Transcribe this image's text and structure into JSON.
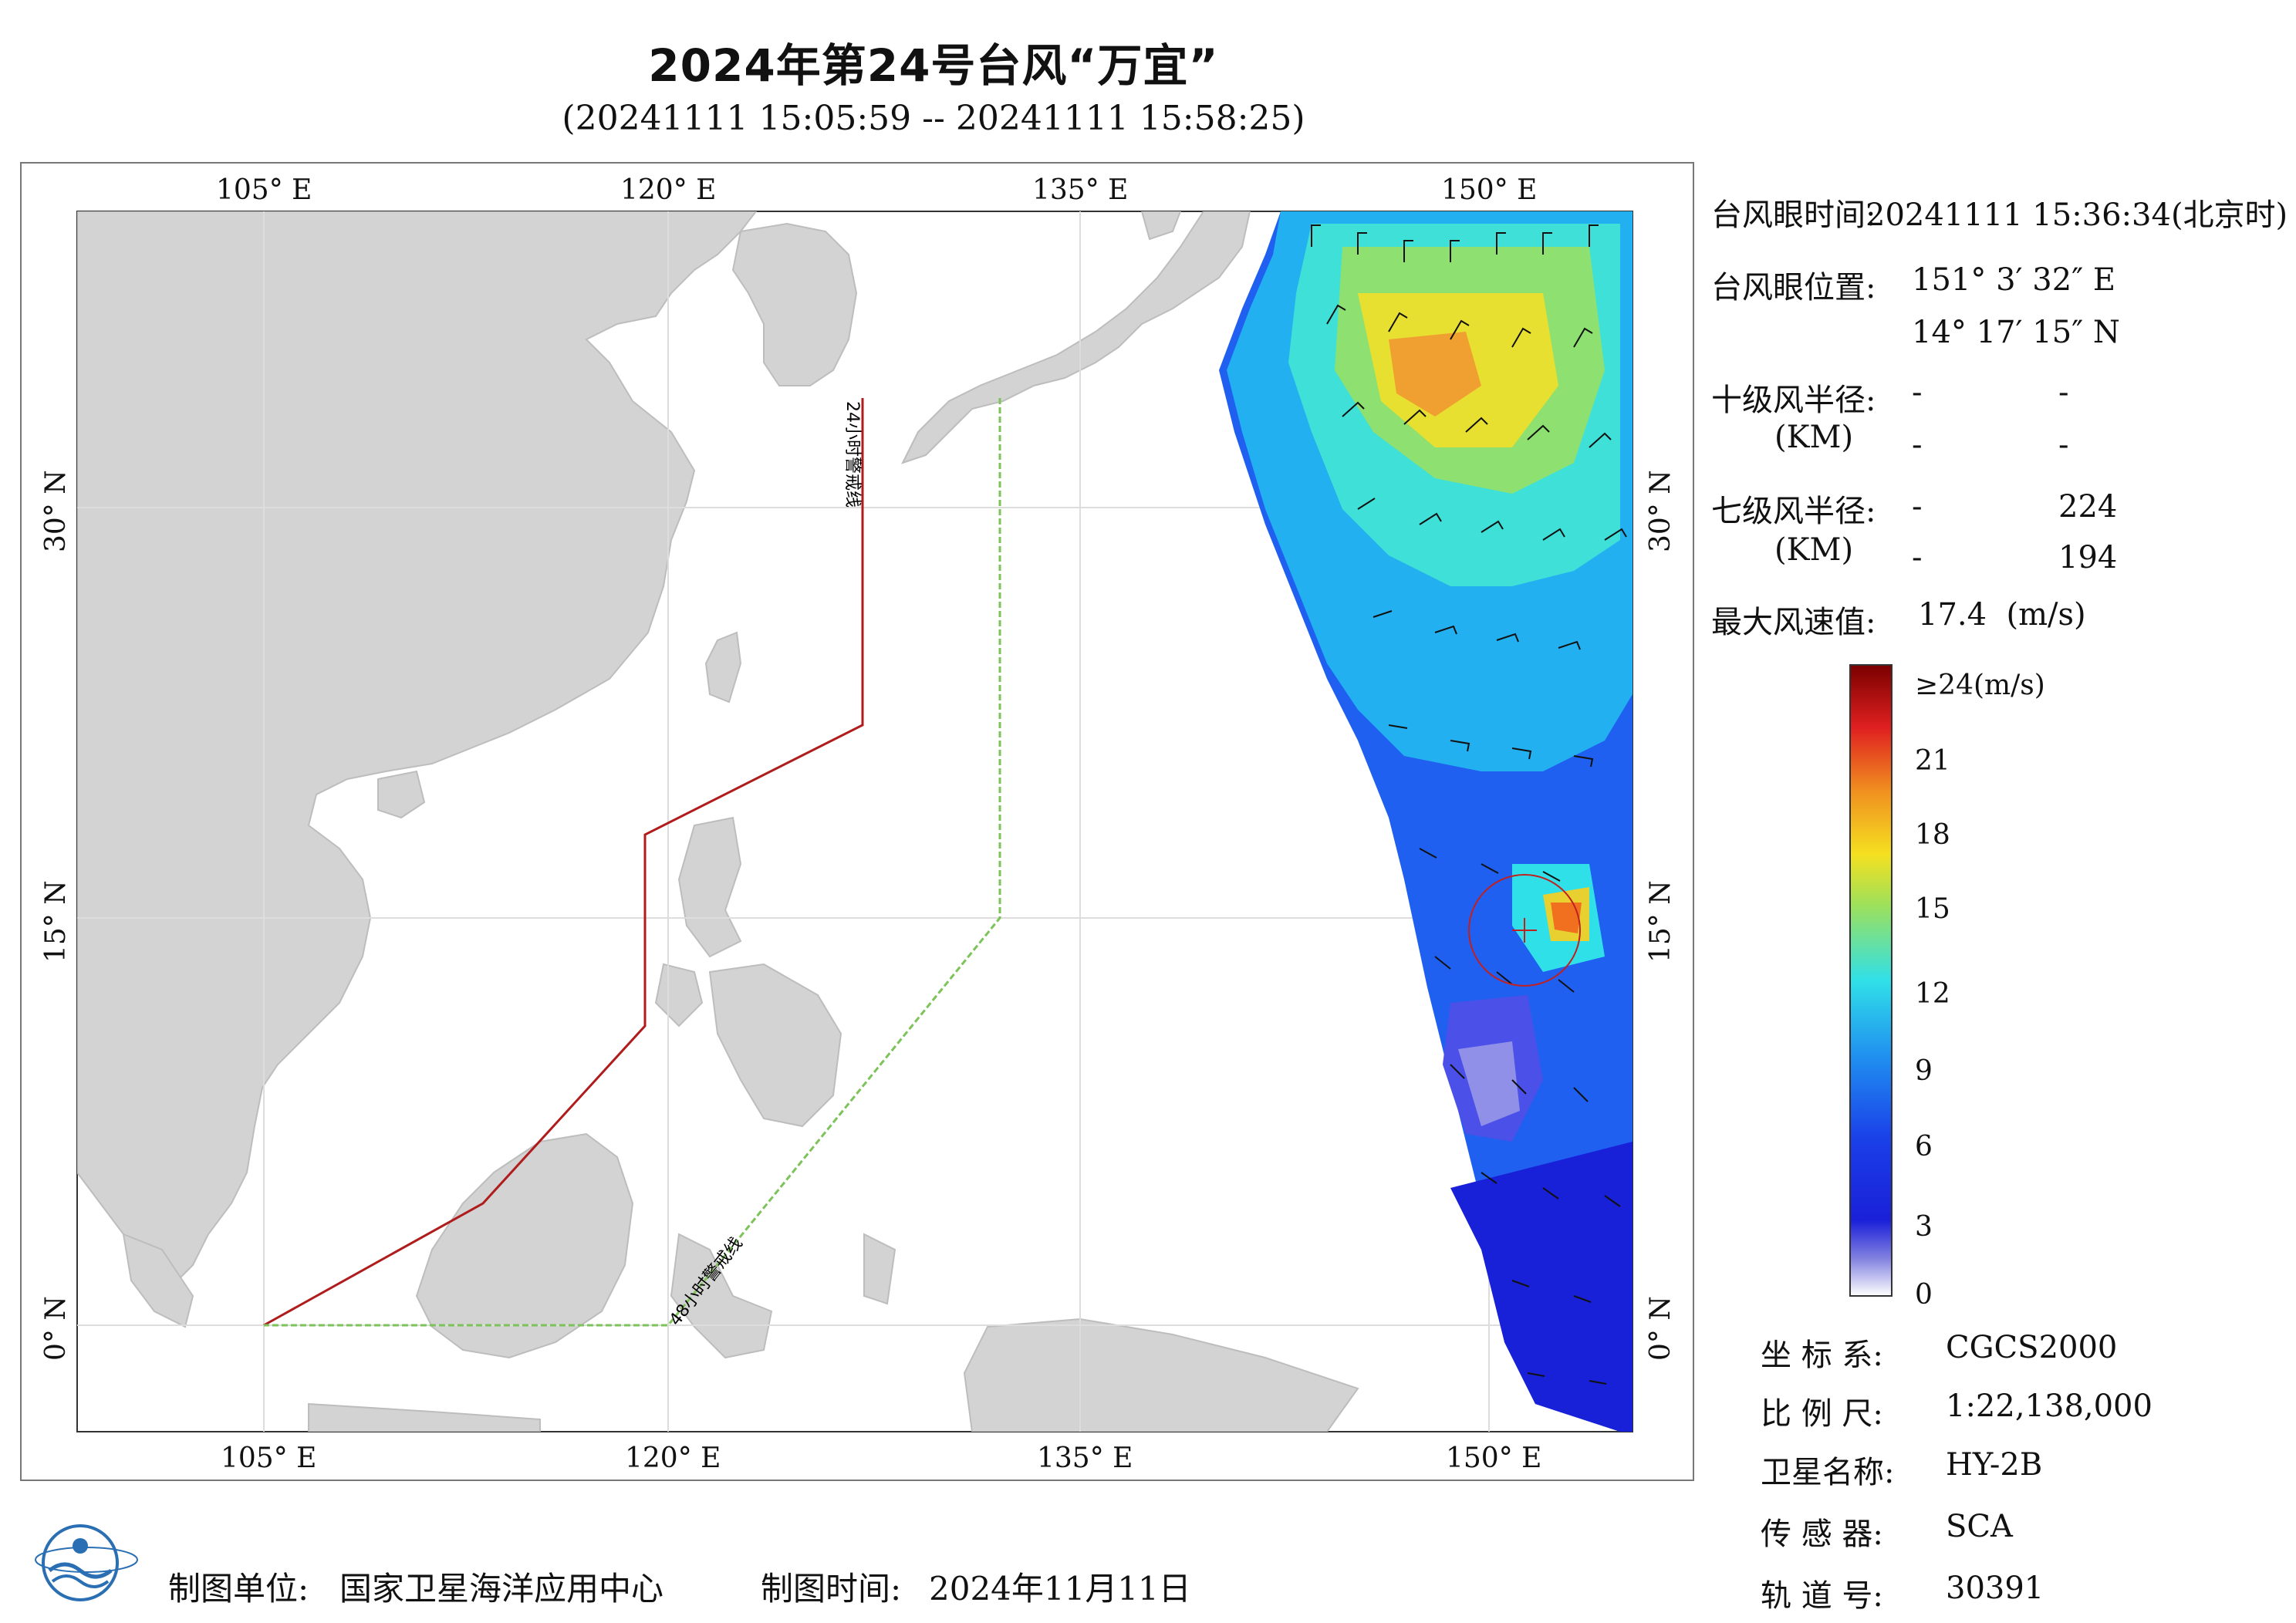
{
  "header": {
    "title": "2024年第24号台风“万宜”",
    "subtitle": "(20241111 15:05:59 -- 20241111 15:58:25)"
  },
  "map": {
    "lon_ticks": [
      "105° E",
      "120° E",
      "135° E",
      "150° E"
    ],
    "lat_ticks": [
      "30° N",
      "15° N",
      "0° N"
    ],
    "warning_24h_label": "24小时警戒线",
    "warning_48h_label": "48小时警戒线",
    "colors": {
      "land": "#d3d3d3",
      "sea": "#ffffff",
      "warning_24h": "#b01c1c",
      "warning_48h": "#7cc35a"
    }
  },
  "info": {
    "eye_time_label": "台风眼时间:",
    "eye_time_value": "20241111 15:36:34(北京时)",
    "eye_pos_label": "台风眼位置:",
    "eye_pos_lon": "151° 3′ 32″ E",
    "eye_pos_lat": "14° 17′ 15″ N",
    "r10_label": "十级风半径:",
    "r10_unit": "(KM)",
    "r10_values": [
      "-",
      "-",
      "-",
      "-"
    ],
    "r7_label": "七级风半径:",
    "r7_unit": "(KM)",
    "r7_values": [
      "-",
      "224",
      "-",
      "194"
    ],
    "max_wind_label": "最大风速值:",
    "max_wind_value": "17.4  (m/s)"
  },
  "colorbar": {
    "labels": [
      "≥24(m/s)",
      "21",
      "18",
      "15",
      "12",
      "9",
      "6",
      "3",
      "0"
    ],
    "colors": [
      "#8b0000",
      "#e02020",
      "#f07820",
      "#f5d020",
      "#9ee05a",
      "#30e0e0",
      "#2080f0",
      "#1a2ee0",
      "#ffffff"
    ]
  },
  "meta": {
    "crs_label": "坐 标 系:",
    "crs_value": "CGCS2000",
    "scale_label": "比 例 尺:",
    "scale_value": "1:22,138,000",
    "satellite_label": "卫星名称:",
    "satellite_value": "HY-2B",
    "sensor_label": "传 感 器:",
    "sensor_value": "SCA",
    "orbit_label": "轨 道 号:",
    "orbit_value": "30391"
  },
  "footer": {
    "org_label": "制图单位:",
    "org_value": "国家卫星海洋应用中心",
    "date_label": "制图时间:",
    "date_value": "2024年11月11日"
  }
}
